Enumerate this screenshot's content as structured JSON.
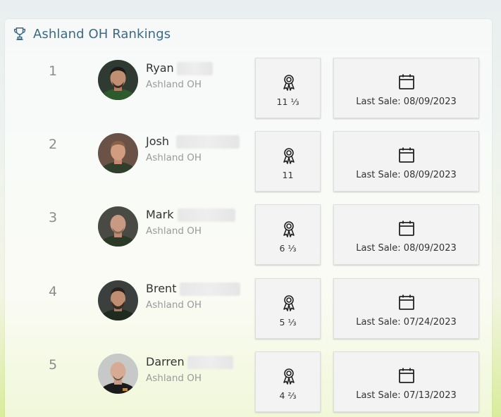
{
  "header": {
    "icon": "trophy-icon",
    "title": "Ashland OH Rankings"
  },
  "colors": {
    "title": "#3c6a83",
    "box_bg": "#f3f3f3"
  },
  "rankings": [
    {
      "rank": "1",
      "name": "Ryan",
      "location": "Ashland OH",
      "awards": "11 ⅓",
      "last_sale": "Last Sale: 08/09/2023"
    },
    {
      "rank": "2",
      "name": "Josh",
      "location": "Ashland OH",
      "awards": "11",
      "last_sale": "Last Sale: 08/09/2023"
    },
    {
      "rank": "3",
      "name": "Mark",
      "location": "Ashland OH",
      "awards": "6 ⅓",
      "last_sale": "Last Sale: 08/09/2023"
    },
    {
      "rank": "4",
      "name": "Brent",
      "location": "Ashland OH",
      "awards": "5 ⅓",
      "last_sale": "Last Sale: 07/24/2023"
    },
    {
      "rank": "5",
      "name": "Darren",
      "location": "Ashland OH",
      "awards": "4 ⅔",
      "last_sale": "Last Sale: 07/13/2023"
    }
  ]
}
